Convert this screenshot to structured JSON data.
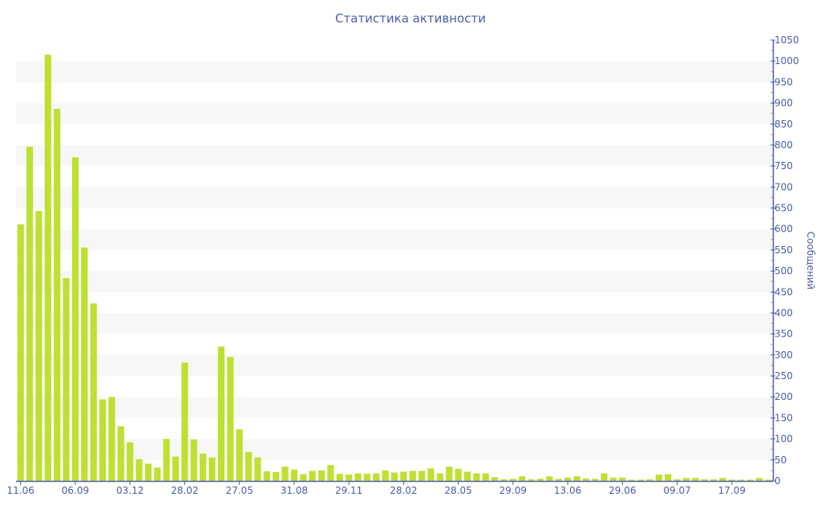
{
  "chart_data": {
    "type": "bar",
    "title": "Статистика активности",
    "xlabel": "",
    "ylabel": "Сообщений",
    "ylim": [
      0,
      1050
    ],
    "y_tick_step": 50,
    "y_axis_side": "right",
    "grid": "alternating horizontal bands",
    "legend": "none",
    "bar_color": "#bde032",
    "axis_color": "#4a5da6",
    "band_color": "#f7f7f7",
    "x_tick_every": 6,
    "x_tick_labels": [
      "11.06",
      "06.09",
      "03.12",
      "28.02",
      "27.05",
      "31.08",
      "29.11",
      "28.02",
      "28.05",
      "29.09",
      "13.06",
      "29.06",
      "09.07",
      "17.09"
    ],
    "values": [
      611,
      796,
      643,
      1015,
      886,
      483,
      771,
      556,
      423,
      194,
      200,
      130,
      92,
      52,
      41,
      32,
      100,
      58,
      282,
      99,
      65,
      56,
      320,
      295,
      123,
      69,
      56,
      23,
      21,
      34,
      27,
      16,
      24,
      25,
      38,
      17,
      15,
      18,
      17,
      18,
      25,
      20,
      22,
      24,
      24,
      30,
      18,
      34,
      29,
      22,
      18,
      18,
      9,
      4,
      5,
      11,
      4,
      5,
      11,
      5,
      8,
      11,
      6,
      5,
      18,
      8,
      8,
      3,
      3,
      4,
      15,
      16,
      4,
      7,
      7,
      4,
      4,
      7,
      3,
      3,
      3,
      7,
      3
    ]
  }
}
